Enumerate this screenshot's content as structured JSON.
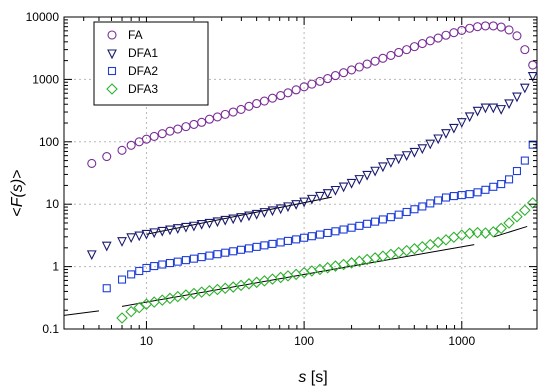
{
  "chart_data": {
    "type": "scatter",
    "title": "",
    "xlabel": "s [s]",
    "ylabel": "<F(s)>",
    "xscale": "log",
    "yscale": "log",
    "xlim": [
      3,
      3000
    ],
    "ylim": [
      0.1,
      10000
    ],
    "x_ticks": [
      10,
      100,
      1000
    ],
    "x_tick_labels": [
      "10",
      "100",
      "1000"
    ],
    "y_ticks": [
      0.1,
      1,
      10,
      100,
      1000,
      10000
    ],
    "y_tick_labels": [
      "0.1",
      "1",
      "10",
      "100",
      "1000",
      "10000"
    ],
    "grid": true,
    "legend_position": "top-left",
    "series": [
      {
        "name": "FA",
        "marker": "circle",
        "color": "#7a2e96",
        "points": [
          [
            4.5,
            45
          ],
          [
            5.6,
            58
          ],
          [
            7,
            73
          ],
          [
            8,
            88
          ],
          [
            9,
            100
          ],
          [
            10,
            110
          ],
          [
            11.2,
            122
          ],
          [
            12.6,
            135
          ],
          [
            14.1,
            148
          ],
          [
            15.8,
            160
          ],
          [
            17.8,
            175
          ],
          [
            20,
            190
          ],
          [
            22.4,
            205
          ],
          [
            25.1,
            230
          ],
          [
            28.2,
            250
          ],
          [
            31.6,
            275
          ],
          [
            35.5,
            300
          ],
          [
            39.8,
            330
          ],
          [
            44.7,
            370
          ],
          [
            50,
            410
          ],
          [
            56,
            450
          ],
          [
            63,
            500
          ],
          [
            71,
            550
          ],
          [
            79,
            610
          ],
          [
            89,
            680
          ],
          [
            100,
            760
          ],
          [
            112,
            840
          ],
          [
            126,
            930
          ],
          [
            141,
            1030
          ],
          [
            158,
            1150
          ],
          [
            178,
            1280
          ],
          [
            200,
            1420
          ],
          [
            224,
            1580
          ],
          [
            251,
            1760
          ],
          [
            282,
            1960
          ],
          [
            316,
            2180
          ],
          [
            355,
            2420
          ],
          [
            398,
            2700
          ],
          [
            447,
            3000
          ],
          [
            501,
            3350
          ],
          [
            562,
            3750
          ],
          [
            631,
            4150
          ],
          [
            708,
            4600
          ],
          [
            794,
            5100
          ],
          [
            891,
            5600
          ],
          [
            1000,
            6100
          ],
          [
            1122,
            6600
          ],
          [
            1259,
            7000
          ],
          [
            1413,
            7200
          ],
          [
            1585,
            7200
          ],
          [
            1778,
            6900
          ],
          [
            1995,
            6200
          ],
          [
            2239,
            5000
          ],
          [
            2512,
            3000
          ],
          [
            2818,
            1700
          ]
        ]
      },
      {
        "name": "DFA1",
        "marker": "triangle-down",
        "color": "#1a1a6e",
        "points": [
          [
            4.5,
            1.6
          ],
          [
            5.6,
            2.2
          ],
          [
            7,
            2.6
          ],
          [
            8,
            3.0
          ],
          [
            9,
            3.2
          ],
          [
            10,
            3.4
          ],
          [
            11.2,
            3.6
          ],
          [
            12.6,
            3.8
          ],
          [
            14.1,
            4.0
          ],
          [
            15.8,
            4.2
          ],
          [
            17.8,
            4.4
          ],
          [
            20,
            4.6
          ],
          [
            22.4,
            4.9
          ],
          [
            25.1,
            5.1
          ],
          [
            28.2,
            5.4
          ],
          [
            31.6,
            5.7
          ],
          [
            35.5,
            6.0
          ],
          [
            39.8,
            6.3
          ],
          [
            44.7,
            6.7
          ],
          [
            50,
            7.1
          ],
          [
            56,
            7.6
          ],
          [
            63,
            8.1
          ],
          [
            71,
            8.7
          ],
          [
            79,
            9.4
          ],
          [
            89,
            10.2
          ],
          [
            100,
            11.2
          ],
          [
            112,
            12.4
          ],
          [
            126,
            13.8
          ],
          [
            141,
            15.3
          ],
          [
            158,
            17.2
          ],
          [
            178,
            19.5
          ],
          [
            200,
            22.3
          ],
          [
            224,
            25.7
          ],
          [
            251,
            30
          ],
          [
            282,
            35
          ],
          [
            316,
            41
          ],
          [
            355,
            48
          ],
          [
            398,
            55
          ],
          [
            447,
            62
          ],
          [
            501,
            70
          ],
          [
            562,
            80
          ],
          [
            631,
            95
          ],
          [
            708,
            115
          ],
          [
            794,
            140
          ],
          [
            891,
            170
          ],
          [
            1000,
            210
          ],
          [
            1122,
            260
          ],
          [
            1259,
            320
          ],
          [
            1413,
            360
          ],
          [
            1585,
            360
          ],
          [
            1778,
            340
          ],
          [
            1995,
            420
          ],
          [
            2239,
            540
          ],
          [
            2512,
            750
          ],
          [
            2818,
            1150
          ]
        ]
      },
      {
        "name": "DFA2",
        "marker": "square",
        "color": "#1f3fd8",
        "points": [
          [
            5.6,
            0.45
          ],
          [
            7,
            0.62
          ],
          [
            8,
            0.75
          ],
          [
            9,
            0.85
          ],
          [
            10,
            0.95
          ],
          [
            11.2,
            1.02
          ],
          [
            12.6,
            1.08
          ],
          [
            14.1,
            1.14
          ],
          [
            15.8,
            1.2
          ],
          [
            17.8,
            1.27
          ],
          [
            20,
            1.34
          ],
          [
            22.4,
            1.42
          ],
          [
            25.1,
            1.5
          ],
          [
            28.2,
            1.58
          ],
          [
            31.6,
            1.67
          ],
          [
            35.5,
            1.76
          ],
          [
            39.8,
            1.86
          ],
          [
            44.7,
            1.96
          ],
          [
            50,
            2.07
          ],
          [
            56,
            2.19
          ],
          [
            63,
            2.31
          ],
          [
            71,
            2.44
          ],
          [
            79,
            2.58
          ],
          [
            89,
            2.73
          ],
          [
            100,
            2.9
          ],
          [
            112,
            3.07
          ],
          [
            126,
            3.26
          ],
          [
            141,
            3.46
          ],
          [
            158,
            3.68
          ],
          [
            178,
            3.93
          ],
          [
            200,
            4.2
          ],
          [
            224,
            4.5
          ],
          [
            251,
            4.85
          ],
          [
            282,
            5.25
          ],
          [
            316,
            5.7
          ],
          [
            355,
            6.2
          ],
          [
            398,
            6.8
          ],
          [
            447,
            7.5
          ],
          [
            501,
            8.3
          ],
          [
            562,
            9.2
          ],
          [
            631,
            10.3
          ],
          [
            708,
            11.5
          ],
          [
            794,
            12.8
          ],
          [
            891,
            13.5
          ],
          [
            1000,
            14
          ],
          [
            1122,
            14.5
          ],
          [
            1259,
            15.5
          ],
          [
            1413,
            17
          ],
          [
            1585,
            19
          ],
          [
            1778,
            21
          ],
          [
            1995,
            25
          ],
          [
            2239,
            34
          ],
          [
            2512,
            50
          ],
          [
            2818,
            90
          ]
        ]
      },
      {
        "name": "DFA3",
        "marker": "diamond",
        "color": "#2fb02f",
        "points": [
          [
            7,
            0.15
          ],
          [
            8,
            0.19
          ],
          [
            9,
            0.22
          ],
          [
            10,
            0.25
          ],
          [
            11.2,
            0.27
          ],
          [
            12.6,
            0.29
          ],
          [
            14.1,
            0.31
          ],
          [
            15.8,
            0.33
          ],
          [
            17.8,
            0.35
          ],
          [
            20,
            0.37
          ],
          [
            22.4,
            0.39
          ],
          [
            25.1,
            0.41
          ],
          [
            28.2,
            0.43
          ],
          [
            31.6,
            0.45
          ],
          [
            35.5,
            0.47
          ],
          [
            39.8,
            0.5
          ],
          [
            44.7,
            0.53
          ],
          [
            50,
            0.56
          ],
          [
            56,
            0.59
          ],
          [
            63,
            0.63
          ],
          [
            71,
            0.67
          ],
          [
            79,
            0.71
          ],
          [
            89,
            0.75
          ],
          [
            100,
            0.8
          ],
          [
            112,
            0.85
          ],
          [
            126,
            0.9
          ],
          [
            141,
            0.96
          ],
          [
            158,
            1.02
          ],
          [
            178,
            1.08
          ],
          [
            200,
            1.15
          ],
          [
            224,
            1.22
          ],
          [
            251,
            1.3
          ],
          [
            282,
            1.38
          ],
          [
            316,
            1.47
          ],
          [
            355,
            1.57
          ],
          [
            398,
            1.68
          ],
          [
            447,
            1.8
          ],
          [
            501,
            1.93
          ],
          [
            562,
            2.08
          ],
          [
            631,
            2.25
          ],
          [
            708,
            2.45
          ],
          [
            794,
            2.68
          ],
          [
            891,
            2.95
          ],
          [
            1000,
            3.2
          ],
          [
            1122,
            3.4
          ],
          [
            1259,
            3.5
          ],
          [
            1413,
            3.45
          ],
          [
            1585,
            3.6
          ],
          [
            1778,
            4.1
          ],
          [
            1995,
            5
          ],
          [
            2239,
            6.3
          ],
          [
            2512,
            8
          ],
          [
            2818,
            10.5
          ]
        ]
      }
    ],
    "fit_lines": [
      {
        "segments": [
          [
            [
              3,
              0.165
            ],
            [
              5,
              0.195
            ]
          ],
          [
            [
              7,
              0.23
            ],
            [
              1200,
              2.25
            ]
          ],
          [
            [
              1600,
              3.0
            ],
            [
              2600,
              4.4
            ]
          ]
        ]
      },
      {
        "segments": [
          [
            [
              10,
              3.3
            ],
            [
              150,
              13
            ]
          ]
        ]
      }
    ]
  }
}
